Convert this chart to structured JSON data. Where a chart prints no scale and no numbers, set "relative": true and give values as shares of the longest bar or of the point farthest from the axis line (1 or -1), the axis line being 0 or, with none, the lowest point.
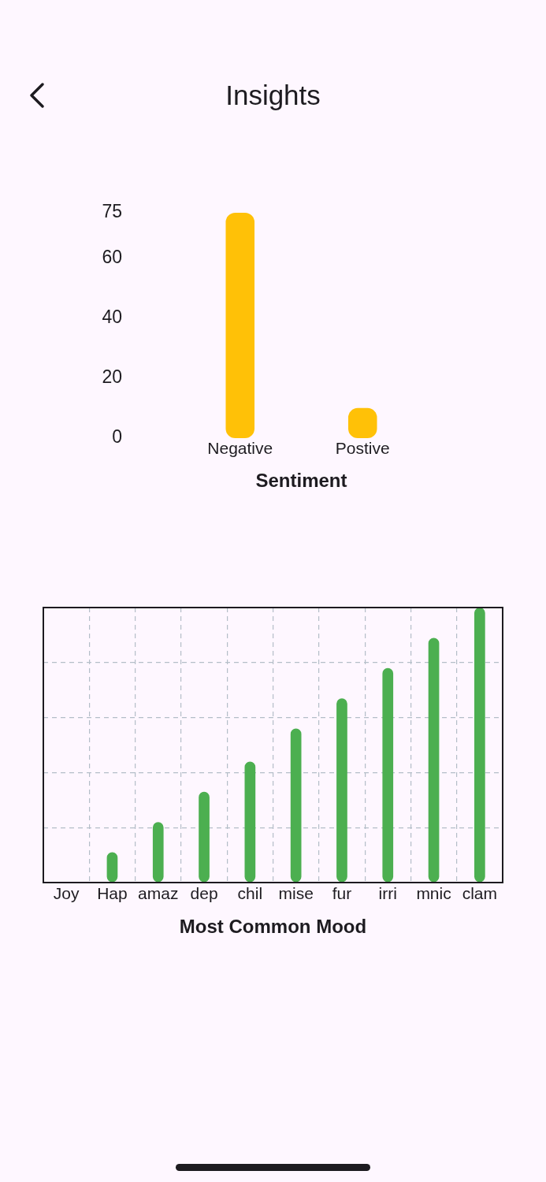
{
  "chart_data": [
    {
      "type": "bar",
      "title": "Insights",
      "xlabel": "Sentiment",
      "categories": [
        "Negative",
        "Postive"
      ],
      "values": [
        75,
        10
      ],
      "color": "#ffc107",
      "ylim": [
        0,
        75
      ],
      "yticks": [
        0,
        20,
        40,
        60,
        75
      ]
    },
    {
      "type": "bar",
      "xlabel": "Most Common Mood",
      "categories": [
        "Joy",
        "Hap",
        "amaz",
        "dep",
        "chil",
        "mise",
        "fur",
        "irri",
        "mnic",
        "clam"
      ],
      "values": [
        0,
        0.11,
        0.22,
        0.33,
        0.44,
        0.56,
        0.67,
        0.78,
        0.89,
        1
      ],
      "color": "#4caf50",
      "relative": true,
      "grid": true
    }
  ]
}
